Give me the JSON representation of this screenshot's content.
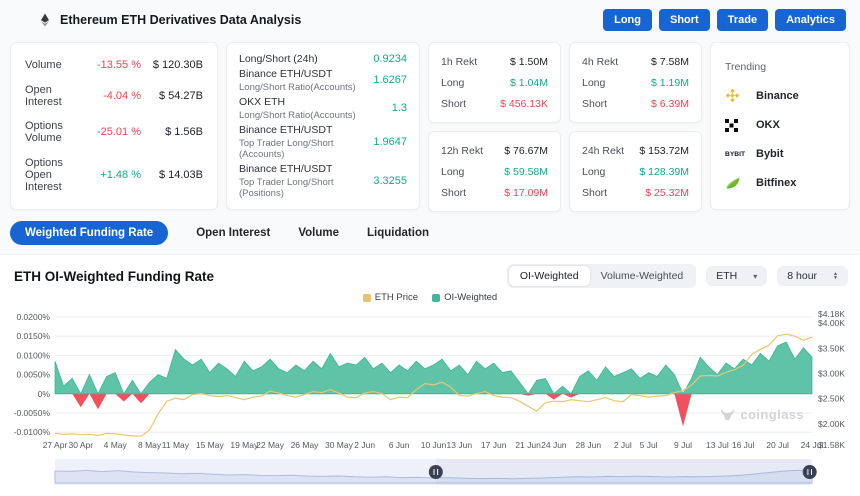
{
  "header": {
    "title": "Ethereum ETH Derivatives Data Analysis",
    "buttons": [
      "Long",
      "Short",
      "Trade",
      "Analytics"
    ]
  },
  "stats": {
    "rows": [
      {
        "label": "Volume",
        "change": "-13.55 %",
        "dir": "down",
        "value": "$ 120.30B"
      },
      {
        "label": "Open Interest",
        "change": "-4.04 %",
        "dir": "down",
        "value": "$ 54.27B"
      },
      {
        "label": "Options Volume",
        "change": "-25.01 %",
        "dir": "down",
        "value": "$ 1.56B"
      },
      {
        "label": "Options Open Interest",
        "change": "+1.48 %",
        "dir": "up",
        "value": "$ 14.03B"
      }
    ]
  },
  "ratios": {
    "rows": [
      {
        "label": "Long/Short (24h)",
        "sub": "",
        "value": "0.9234"
      },
      {
        "label": "Binance ETH/USDT",
        "sub": "Long/Short Ratio(Accounts)",
        "value": "1.6267"
      },
      {
        "label": "OKX ETH",
        "sub": "Long/Short Ratio(Accounts)",
        "value": "1.3"
      },
      {
        "label": "Binance ETH/USDT",
        "sub": "Top Trader Long/Short (Accounts)",
        "value": "1.9647"
      },
      {
        "label": "Binance ETH/USDT",
        "sub": "Top Trader Long/Short (Positions)",
        "value": "3.3255"
      }
    ]
  },
  "rekt_labels": {
    "long": "Long",
    "short": "Short"
  },
  "rekt": [
    {
      "period": "1h Rekt",
      "total": "$ 1.50M",
      "long": "$ 1.04M",
      "short": "$ 456.13K"
    },
    {
      "period": "4h Rekt",
      "total": "$ 7.58M",
      "long": "$ 1.19M",
      "short": "$ 6.39M"
    },
    {
      "period": "12h Rekt",
      "total": "$ 76.67M",
      "long": "$ 59.58M",
      "short": "$ 17.09M"
    },
    {
      "period": "24h Rekt",
      "total": "$ 153.72M",
      "long": "$ 128.39M",
      "short": "$ 25.32M"
    }
  ],
  "trending": {
    "title": "Trending",
    "items": [
      {
        "name": "Binance",
        "icon": "binance-icon"
      },
      {
        "name": "OKX",
        "icon": "okx-icon"
      },
      {
        "name": "Bybit",
        "icon": "bybit-icon"
      },
      {
        "name": "Bitfinex",
        "icon": "bitfinex-icon"
      }
    ]
  },
  "tabs": [
    {
      "label": "Weighted Funding Rate",
      "active": true
    },
    {
      "label": "Open Interest",
      "active": false
    },
    {
      "label": "Volume",
      "active": false
    },
    {
      "label": "Liquidation",
      "active": false
    }
  ],
  "chart_header": {
    "title": "ETH OI-Weighted Funding Rate",
    "weight_toggle": [
      "OI-Weighted",
      "Volume-Weighted"
    ],
    "weight_active": "OI-Weighted",
    "symbol": "ETH",
    "interval": "8 hour"
  },
  "legend": [
    {
      "label": "ETH Price",
      "color": "#e7c36a"
    },
    {
      "label": "OI-Weighted",
      "color": "#41b79a"
    }
  ],
  "watermark": {
    "text": "coinglass"
  },
  "colors": {
    "accent_blue": "#1765d3",
    "positive": "#14a990",
    "negative": "#ef4452",
    "chart_green": "#5fc3a7",
    "chart_green_edge": "#3db693",
    "chart_red": "#f0515c",
    "price_line": "#e9c76f",
    "grid": "#ededed",
    "nav_fill": "#dde3f5",
    "nav_line": "#b0bce0",
    "nav_track": "#eef1f9",
    "handle": "#3a4154"
  },
  "chart_data": {
    "type": "area",
    "title": "ETH OI-Weighted Funding Rate",
    "legend_position": "top-center",
    "grid": true,
    "left_axis_label_format": "percent",
    "right_axis_label_format": "usd",
    "left_ticks": [
      {
        "label": "0.0200%",
        "v": 0.02
      },
      {
        "label": "0.0150%",
        "v": 0.015
      },
      {
        "label": "0.0100%",
        "v": 0.01
      },
      {
        "label": "0.0050%",
        "v": 0.005
      },
      {
        "label": "0%",
        "v": 0
      },
      {
        "label": "-0.0050%",
        "v": -0.005
      },
      {
        "label": "-0.0100%",
        "v": -0.01
      }
    ],
    "right_ticks": [
      {
        "label": "$4.18K",
        "v": 4180
      },
      {
        "label": "$4.00K",
        "v": 4000
      },
      {
        "label": "$3.50K",
        "v": 3500
      },
      {
        "label": "$3.00K",
        "v": 3000
      },
      {
        "label": "$2.50K",
        "v": 2500
      },
      {
        "label": "$2.00K",
        "v": 2000
      },
      {
        "label": "$1.58K",
        "v": 1580
      }
    ],
    "dates": [
      "27 Apr",
      "28 Apr",
      "29 Apr",
      "30 Apr",
      "1 May",
      "2 May",
      "3 May",
      "4 May",
      "5 May",
      "6 May",
      "7 May",
      "8 May",
      "9 May",
      "10 May",
      "11 May",
      "12 May",
      "13 May",
      "14 May",
      "15 May",
      "16 May",
      "17 May",
      "18 May",
      "19 May",
      "20 May",
      "21 May",
      "22 May",
      "23 May",
      "24 May",
      "25 May",
      "26 May",
      "27 May",
      "28 May",
      "29 May",
      "30 May",
      "31 May",
      "1 Jun",
      "2 Jun",
      "3 Jun",
      "4 Jun",
      "5 Jun",
      "6 Jun",
      "7 Jun",
      "8 Jun",
      "9 Jun",
      "10 Jun",
      "11 Jun",
      "12 Jun",
      "13 Jun",
      "14 Jun",
      "15 Jun",
      "16 Jun",
      "17 Jun",
      "18 Jun",
      "19 Jun",
      "20 Jun",
      "21 Jun",
      "22 Jun",
      "23 Jun",
      "24 Jun",
      "25 Jun",
      "26 Jun",
      "27 Jun",
      "28 Jun",
      "29 Jun",
      "30 Jun",
      "1 Jul",
      "2 Jul",
      "3 Jul",
      "4 Jul",
      "5 Jul",
      "6 Jul",
      "7 Jul",
      "8 Jul",
      "9 Jul",
      "10 Jul",
      "11 Jul",
      "12 Jul",
      "13 Jul",
      "14 Jul",
      "15 Jul",
      "16 Jul",
      "17 Jul",
      "18 Jul",
      "19 Jul",
      "20 Jul",
      "21 Jul",
      "22 Jul",
      "23 Jul",
      "24 Jul"
    ],
    "series": [
      {
        "name": "OI-Weighted",
        "unit": "percent",
        "values": [
          0.0085,
          0.002,
          0.004,
          -0.0035,
          0.005,
          -0.004,
          0.0045,
          0.0055,
          -0.002,
          0.0035,
          -0.0025,
          0.003,
          0.005,
          0.004,
          0.0115,
          0.009,
          0.0075,
          0.009,
          0.0055,
          0.008,
          0.0065,
          0.0045,
          0.0085,
          0.006,
          0.007,
          0.009,
          0.0065,
          0.0055,
          0.0075,
          0.006,
          0.0085,
          0.0065,
          0.0105,
          0.007,
          0.008,
          0.0075,
          0.0095,
          0.0065,
          0.008,
          0.0055,
          0.0075,
          0.006,
          0.0085,
          0.0065,
          0.0075,
          0.009,
          0.006,
          0.0075,
          0.005,
          0.0085,
          0.0065,
          0.008,
          0.0055,
          0.006,
          0.003,
          -0.0005,
          0.0035,
          0.004,
          -0.0015,
          0.002,
          -0.001,
          0.0045,
          0.006,
          0.0035,
          0.007,
          0.0045,
          0.0055,
          0.0065,
          0.004,
          0.0055,
          0.0045,
          0.0075,
          0.005,
          -0.0085,
          0.004,
          0.0095,
          0.007,
          0.005,
          0.008,
          0.0065,
          0.009,
          0.0075,
          0.0105,
          0.0085,
          0.0125,
          0.0135,
          0.009,
          0.012,
          0.0095
        ]
      },
      {
        "name": "ETH Price",
        "unit": "usd",
        "values": [
          1815,
          1790,
          1800,
          1785,
          1790,
          1770,
          1810,
          1800,
          1780,
          1760,
          1755,
          1880,
          2200,
          2450,
          2510,
          2480,
          2580,
          2600,
          2560,
          2540,
          2560,
          2520,
          2480,
          2530,
          2550,
          2650,
          2610,
          2560,
          2530,
          2580,
          2640,
          2620,
          2680,
          2610,
          2530,
          2520,
          2610,
          2640,
          2600,
          2480,
          2530,
          2520,
          2680,
          2800,
          2770,
          2830,
          2730,
          2560,
          2550,
          2600,
          2640,
          2560,
          2530,
          2520,
          2450,
          2350,
          2250,
          2420,
          2450,
          2440,
          2480,
          2460,
          2440,
          2480,
          2520,
          2460,
          2440,
          2580,
          2560,
          2530,
          2550,
          2560,
          2620,
          2660,
          2770,
          2950,
          2960,
          2950,
          3020,
          3080,
          3160,
          3380,
          3480,
          3560,
          3750,
          3780,
          3740,
          3660,
          3720
        ]
      }
    ],
    "x_tick_indices": [
      0,
      3,
      7,
      11,
      14,
      18,
      22,
      25,
      29,
      33,
      36,
      40,
      44,
      47,
      51,
      55,
      58,
      62,
      66,
      69,
      73,
      77,
      80,
      84,
      88
    ],
    "rate_axis_range": [
      -0.0132,
      0.022
    ],
    "price_axis_range": [
      1580,
      4180
    ],
    "navigator": {
      "values": [
        0.6,
        0.58,
        0.63,
        0.57,
        0.62,
        0.55,
        0.52,
        0.5,
        0.46,
        0.48,
        0.44,
        0.4,
        0.42,
        0.38,
        0.37,
        0.39,
        0.35,
        0.33,
        0.35,
        0.31,
        0.29,
        0.31,
        0.27,
        0.28,
        0.25,
        0.27,
        0.24,
        0.22,
        0.24,
        0.21,
        0.23,
        0.25,
        0.28,
        0.31,
        0.3,
        0.33,
        0.32,
        0.34,
        0.32,
        0.3,
        0.32,
        0.31,
        0.33,
        0.36,
        0.42,
        0.5,
        0.58,
        0.64,
        0.62
      ],
      "handles": [
        0.503,
        0.997
      ]
    }
  }
}
